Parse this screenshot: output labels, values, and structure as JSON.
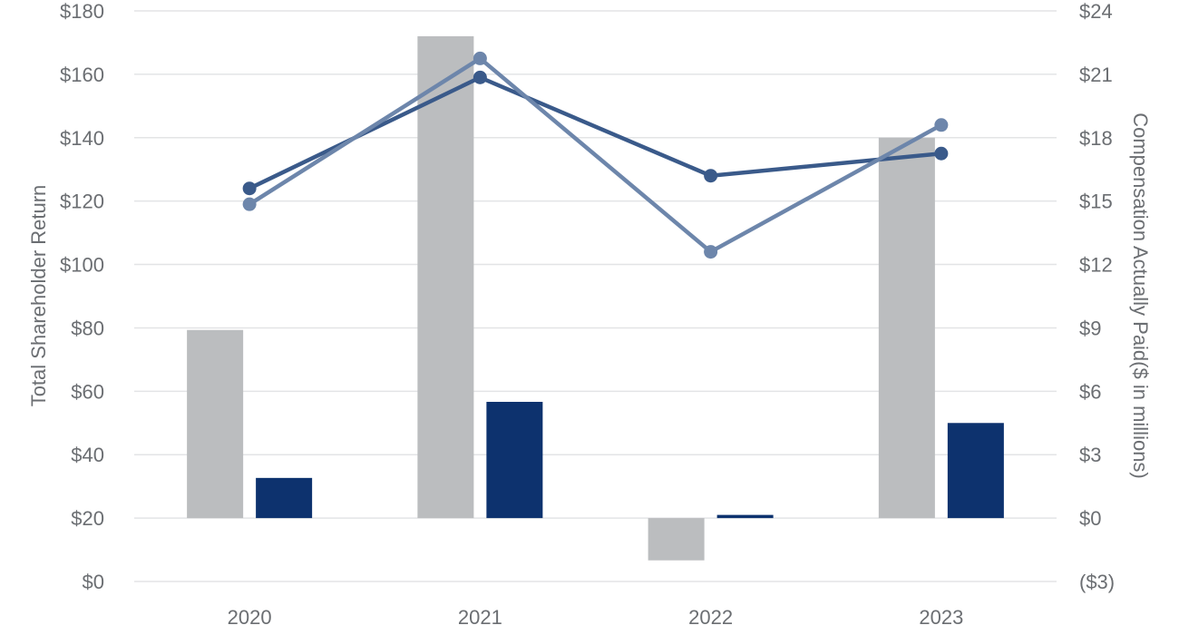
{
  "chart_data": {
    "type": "bar",
    "categories": [
      "2020",
      "2021",
      "2022",
      "2023"
    ],
    "left_axis": {
      "label": "Total Shareholder Return",
      "ylim": [
        0,
        180
      ],
      "ticks": [
        "$0",
        "$20",
        "$40",
        "$60",
        "$80",
        "$100",
        "$120",
        "$140",
        "$160",
        "$180"
      ]
    },
    "right_axis": {
      "label": "Compensation Actually Paid($ in millions)",
      "ylim": [
        -3,
        24
      ],
      "ticks": [
        "($3)",
        "$0",
        "$3",
        "$6",
        "$9",
        "$12",
        "$15",
        "$18",
        "$21",
        "$24"
      ]
    },
    "series": [
      {
        "type": "bar",
        "axis": "right",
        "color": "#bbbdbf",
        "values": [
          8.9,
          22.8,
          -2.0,
          18.0
        ]
      },
      {
        "type": "bar",
        "axis": "right",
        "color": "#0d326e",
        "values": [
          1.9,
          5.5,
          0.15,
          4.5
        ]
      },
      {
        "type": "line",
        "axis": "left",
        "color": "#3a5a8a",
        "values": [
          124,
          159,
          128,
          135
        ]
      },
      {
        "type": "line",
        "axis": "left",
        "color": "#6d86ab",
        "values": [
          119,
          165,
          104,
          144
        ]
      }
    ],
    "grid": true,
    "legend": "none"
  }
}
